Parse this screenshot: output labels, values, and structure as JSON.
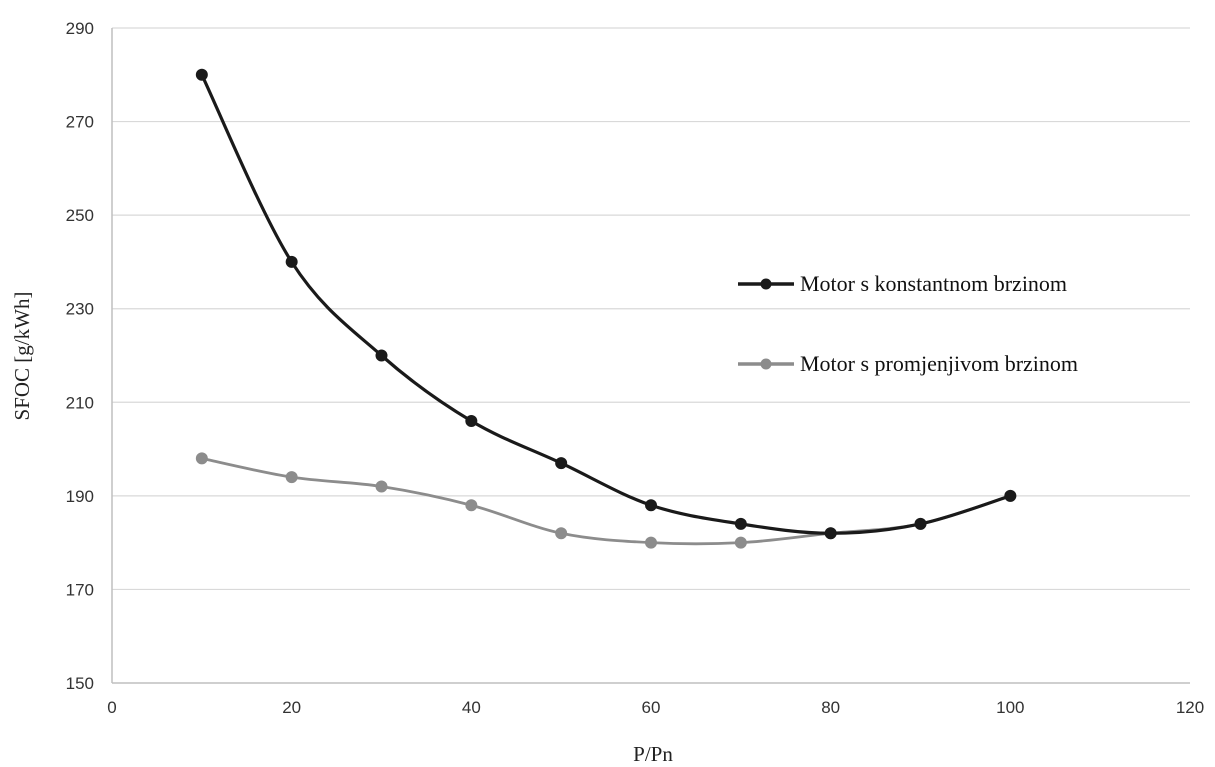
{
  "chart_data": {
    "type": "line",
    "xlabel": "P/Pn",
    "ylabel": "SFOC [g/kWh]",
    "xlim": [
      0,
      120
    ],
    "ylim": [
      150,
      290
    ],
    "x_ticks": [
      0,
      20,
      40,
      60,
      80,
      100,
      120
    ],
    "y_ticks": [
      150,
      170,
      190,
      210,
      230,
      250,
      270,
      290
    ],
    "grid": "horizontal",
    "legend_position": "right",
    "series": [
      {
        "name": "Motor s konstantnom brzinom",
        "color": "#1a1a1a",
        "x": [
          10,
          20,
          30,
          40,
          50,
          60,
          70,
          80,
          90,
          100
        ],
        "y": [
          280,
          240,
          220,
          206,
          197,
          188,
          184,
          182,
          184,
          190
        ]
      },
      {
        "name": "Motor s promjenjivom brzinom",
        "color": "#8c8c8c",
        "x": [
          10,
          20,
          30,
          40,
          50,
          60,
          70,
          80,
          90,
          100
        ],
        "y": [
          198,
          194,
          192,
          188,
          182,
          180,
          180,
          182,
          184,
          190
        ]
      }
    ]
  }
}
